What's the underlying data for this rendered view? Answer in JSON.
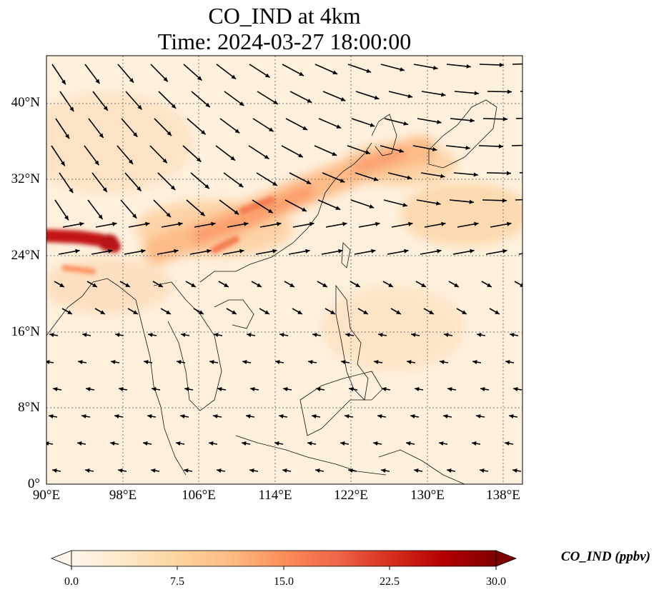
{
  "title": {
    "line1": "CO_IND at 4km",
    "line2": "Time: 2024-03-27 18:00:00"
  },
  "map": {
    "projection": "PlateCarree",
    "lon_range": [
      90,
      140
    ],
    "lat_range": [
      0,
      45
    ],
    "lon_ticks": [
      "90°E",
      "98°E",
      "106°E",
      "114°E",
      "122°E",
      "130°E",
      "138°E"
    ],
    "lat_ticks": [
      "0°",
      "8°N",
      "16°N",
      "24°N",
      "32°N",
      "40°N"
    ],
    "gridlines": "dotted gray",
    "field": "CO_IND",
    "overlay": "wind vectors"
  },
  "colorbar": {
    "label": "CO_IND (ppbv)",
    "ticks": [
      "0.0",
      "7.5",
      "15.0",
      "22.5",
      "30.0"
    ],
    "range": [
      0,
      30
    ],
    "extend": "both",
    "colormap": "OrRd",
    "colors": [
      "#fff7ec",
      "#fee8c8",
      "#fdd49e",
      "#fdbb84",
      "#fc8d59",
      "#ef6548",
      "#d7301f",
      "#b30000",
      "#7f0000"
    ]
  }
}
